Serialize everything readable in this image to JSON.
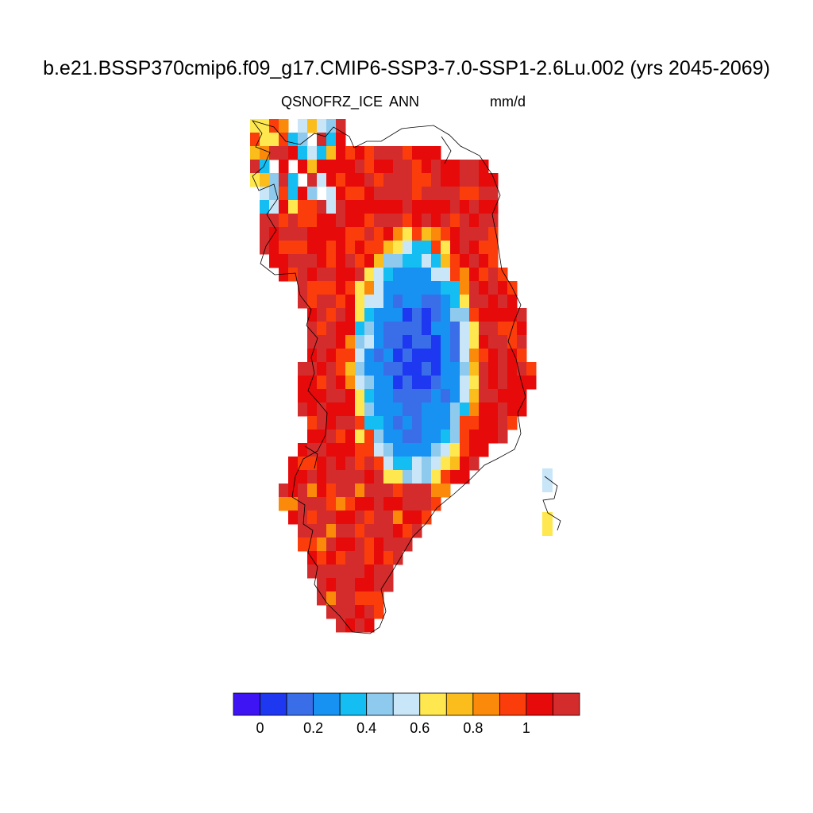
{
  "header": {
    "title": "b.e21.BSSP370cmip6.f09_g17.CMIP6-SSP3-7.0-SSP1-2.6Lu.002 (yrs 2045-2069)",
    "variable": "QSNOFRZ_ICE",
    "season": "ANN",
    "units": "mm/d"
  },
  "colorbar": {
    "colors": [
      "#3f14f4",
      "#1d38f0",
      "#3a6ee8",
      "#1791f2",
      "#14bdf2",
      "#8ecaee",
      "#c8e6f8",
      "#ffe84f",
      "#fbbd1c",
      "#fb8a0a",
      "#fb3c0b",
      "#e60a0a",
      "#d42c2c"
    ],
    "tick_labels": [
      "0",
      "0.2",
      "0.4",
      "0.6",
      "0.8",
      "1"
    ]
  },
  "map": {
    "projection": "polar stereographic",
    "region": "Greenland",
    "coastlines": true
  }
}
